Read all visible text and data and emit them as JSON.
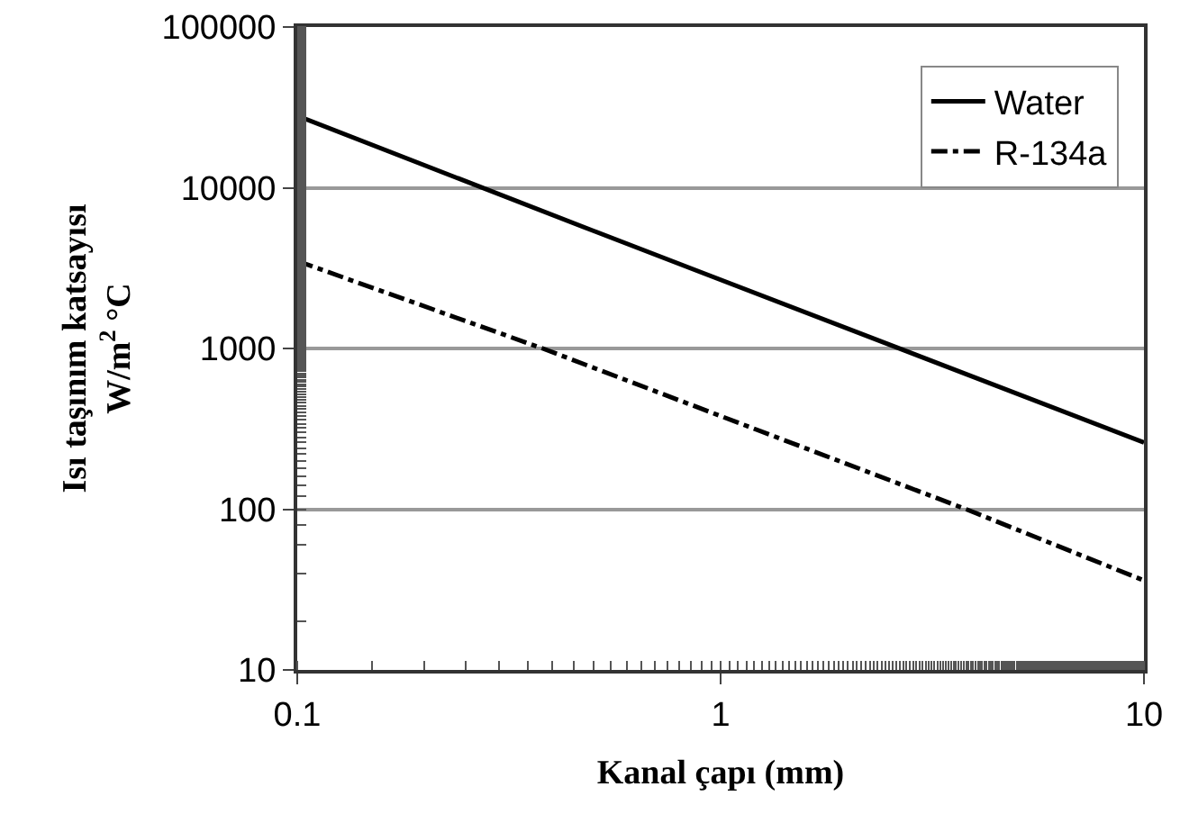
{
  "chart_data": {
    "type": "line",
    "xlabel": "Kanal çapı (mm)",
    "ylabel": "Isı taşınım katsayısı\nW/m$^{2}$ °C",
    "log": "xy",
    "xlim": [
      0.1,
      10
    ],
    "xticks": [
      0.1,
      1,
      10
    ],
    "ylim": [
      10,
      100000
    ],
    "yticks": [
      10,
      100,
      1000,
      10000,
      100000
    ],
    "grid": "y",
    "legend": "top right",
    "marker": "none",
    "series": [
      {
        "name": "Water",
        "color": "#000000",
        "line_style": "solid",
        "x": [
          0.1,
          0.5,
          10
        ],
        "values": [
          28000,
          5400,
          260
        ]
      },
      {
        "name": "R-134a",
        "color": "#000000",
        "line_style": "dashdot",
        "x": [
          0.1,
          0.38,
          3.8,
          10
        ],
        "values": [
          3500,
          1000,
          100,
          36
        ]
      }
    ]
  }
}
